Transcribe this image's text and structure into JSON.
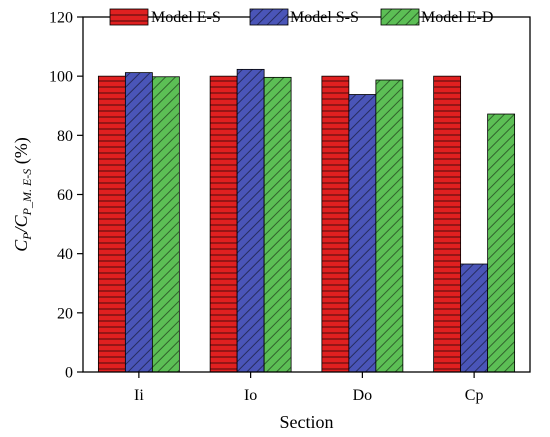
{
  "chart_data": {
    "type": "bar",
    "categories": [
      "Ii",
      "Io",
      "Do",
      "Cp"
    ],
    "series": [
      {
        "name": "Model E-S",
        "values": [
          100,
          100,
          100,
          100
        ],
        "color": "#e02020",
        "hatch": "horizontal"
      },
      {
        "name": "Model S-S",
        "values": [
          101.2,
          102.3,
          93.8,
          36.5
        ],
        "color": "#4a55b8",
        "hatch": "diagonal"
      },
      {
        "name": "Model E-D",
        "values": [
          99.8,
          99.6,
          98.7,
          87.2
        ],
        "color": "#5cbf55",
        "hatch": "diagonal"
      }
    ],
    "xlabel": "Section",
    "ylabel": {
      "main": "C",
      "sub1": "P",
      "mid": "/C",
      "sub2": "P_M. E-S",
      "unit": " (%)"
    },
    "ylim": [
      0,
      120
    ],
    "yticks": [
      0,
      20,
      40,
      60,
      80,
      100,
      120
    ],
    "grid": false,
    "legend": "top"
  }
}
